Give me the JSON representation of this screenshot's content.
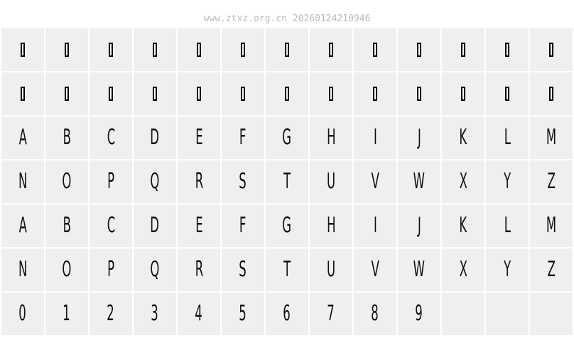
{
  "header": {
    "watermark": "www.ztxz.org.cn 20260124210946"
  },
  "grid": {
    "notdef_glyph": "▯",
    "rows": [
      [
        "▯",
        "▯",
        "▯",
        "▯",
        "▯",
        "▯",
        "▯",
        "▯",
        "▯",
        "▯",
        "▯",
        "▯",
        "▯"
      ],
      [
        "▯",
        "▯",
        "▯",
        "▯",
        "▯",
        "▯",
        "▯",
        "▯",
        "▯",
        "▯",
        "▯",
        "▯",
        "▯"
      ],
      [
        "A",
        "B",
        "C",
        "D",
        "E",
        "F",
        "G",
        "H",
        "I",
        "J",
        "K",
        "L",
        "M"
      ],
      [
        "N",
        "O",
        "P",
        "Q",
        "R",
        "S",
        "T",
        "U",
        "V",
        "W",
        "X",
        "Y",
        "Z"
      ],
      [
        "A",
        "B",
        "C",
        "D",
        "E",
        "F",
        "G",
        "H",
        "I",
        "J",
        "K",
        "L",
        "M"
      ],
      [
        "N",
        "O",
        "P",
        "Q",
        "R",
        "S",
        "T",
        "U",
        "V",
        "W",
        "X",
        "Y",
        "Z"
      ],
      [
        "0",
        "1",
        "2",
        "3",
        "4",
        "5",
        "6",
        "7",
        "8",
        "9",
        "",
        "",
        ""
      ]
    ]
  }
}
